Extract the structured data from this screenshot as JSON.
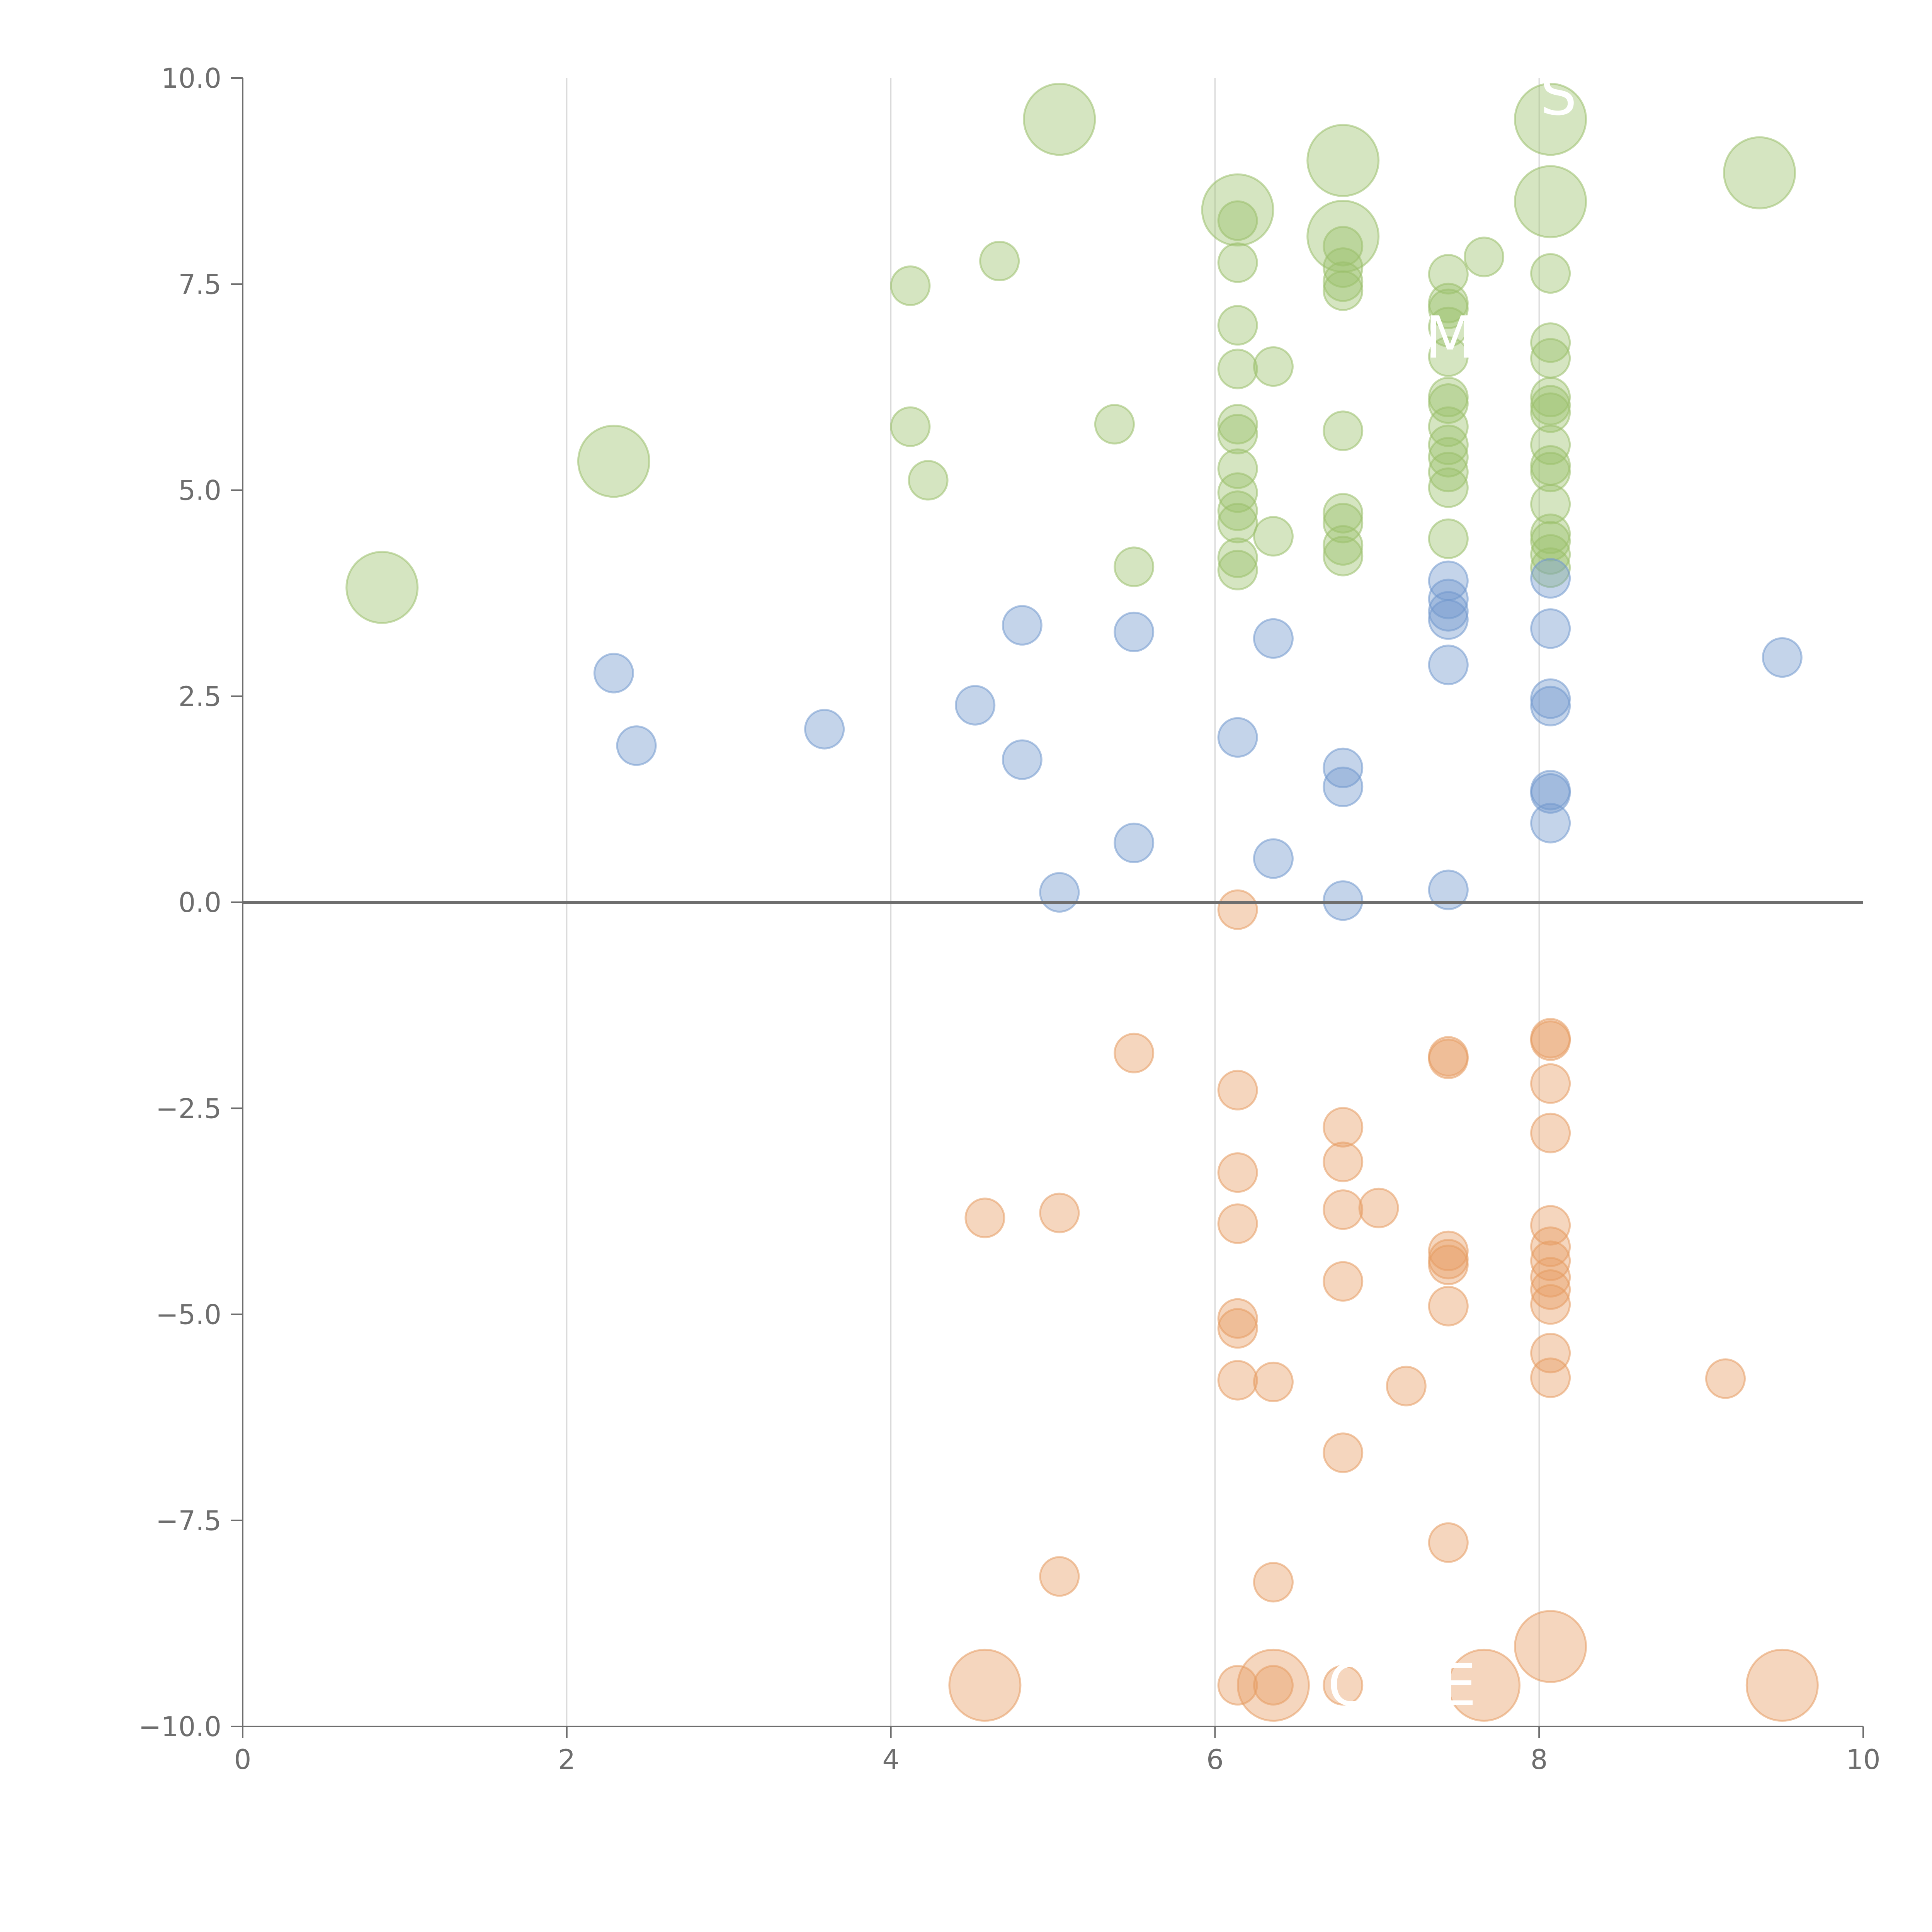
{
  "chart_data": {
    "type": "scatter",
    "title": "",
    "xlabel": "",
    "ylabel": "",
    "xlim": [
      0,
      10
    ],
    "ylim": [
      -10,
      10
    ],
    "x_ticks": [
      "0",
      "2",
      "4",
      "6",
      "8",
      "10"
    ],
    "y_ticks": [
      "10.0",
      "7.5",
      "5.0",
      "2.5",
      "0.0",
      "−2.5",
      "−5.0",
      "−7.5",
      "−10.0"
    ],
    "vertical_gridlines_at": [
      2,
      4,
      6,
      8
    ],
    "reference_line_y": 0,
    "legend": "none",
    "colors": {
      "green": "#9bc06b",
      "blue": "#7399ce",
      "orange": "#e69d63",
      "axis": "#6e6e6e",
      "grid": "#d6d6d6"
    },
    "overlay_labels": [
      {
        "text": "S",
        "x": 8.12,
        "y": 9.75
      },
      {
        "text": "M",
        "x": 7.45,
        "y": 6.8
      },
      {
        "text": "C",
        "x": 6.82,
        "y": -9.55
      },
      {
        "text": "E",
        "x": 7.5,
        "y": -9.55
      }
    ],
    "series": [
      {
        "name": "green",
        "color": "#9bc06b",
        "points": [
          {
            "x": 0.86,
            "y": 3.82,
            "s": "large"
          },
          {
            "x": 2.29,
            "y": 5.35,
            "s": "large"
          },
          {
            "x": 5.04,
            "y": 9.5,
            "s": "large"
          },
          {
            "x": 6.14,
            "y": 8.4,
            "s": "large"
          },
          {
            "x": 6.79,
            "y": 9.0,
            "s": "large"
          },
          {
            "x": 6.79,
            "y": 8.08,
            "s": "large"
          },
          {
            "x": 8.07,
            "y": 9.5,
            "s": "large"
          },
          {
            "x": 8.07,
            "y": 8.5,
            "s": "large"
          },
          {
            "x": 9.36,
            "y": 8.85,
            "s": "large"
          },
          {
            "x": 4.12,
            "y": 7.48,
            "s": "small"
          },
          {
            "x": 4.67,
            "y": 7.78,
            "s": "small"
          },
          {
            "x": 4.12,
            "y": 5.77,
            "s": "small"
          },
          {
            "x": 4.23,
            "y": 5.12,
            "s": "small"
          },
          {
            "x": 5.38,
            "y": 5.8,
            "s": "small"
          },
          {
            "x": 5.5,
            "y": 4.07,
            "s": "small"
          },
          {
            "x": 6.14,
            "y": 8.27,
            "s": "small"
          },
          {
            "x": 6.14,
            "y": 7.76,
            "s": "small"
          },
          {
            "x": 6.14,
            "y": 7.0,
            "s": "small"
          },
          {
            "x": 6.14,
            "y": 6.47,
            "s": "small"
          },
          {
            "x": 6.36,
            "y": 6.5,
            "s": "small"
          },
          {
            "x": 6.14,
            "y": 5.8,
            "s": "small"
          },
          {
            "x": 6.14,
            "y": 5.68,
            "s": "small"
          },
          {
            "x": 6.14,
            "y": 5.26,
            "s": "small"
          },
          {
            "x": 6.14,
            "y": 4.97,
            "s": "small"
          },
          {
            "x": 6.14,
            "y": 4.75,
            "s": "small"
          },
          {
            "x": 6.14,
            "y": 4.6,
            "s": "small"
          },
          {
            "x": 6.14,
            "y": 4.18,
            "s": "small"
          },
          {
            "x": 6.14,
            "y": 4.03,
            "s": "small"
          },
          {
            "x": 6.36,
            "y": 4.44,
            "s": "small"
          },
          {
            "x": 6.79,
            "y": 7.96,
            "s": "small"
          },
          {
            "x": 6.79,
            "y": 7.7,
            "s": "small"
          },
          {
            "x": 6.79,
            "y": 7.53,
            "s": "small"
          },
          {
            "x": 6.79,
            "y": 7.42,
            "s": "small"
          },
          {
            "x": 6.79,
            "y": 5.72,
            "s": "small"
          },
          {
            "x": 6.79,
            "y": 4.72,
            "s": "small"
          },
          {
            "x": 6.79,
            "y": 4.6,
            "s": "small"
          },
          {
            "x": 6.79,
            "y": 4.33,
            "s": "small"
          },
          {
            "x": 6.79,
            "y": 4.2,
            "s": "small"
          },
          {
            "x": 7.44,
            "y": 7.62,
            "s": "small"
          },
          {
            "x": 7.44,
            "y": 7.27,
            "s": "small"
          },
          {
            "x": 7.44,
            "y": 7.2,
            "s": "small"
          },
          {
            "x": 7.44,
            "y": 6.98,
            "s": "small"
          },
          {
            "x": 7.44,
            "y": 6.62,
            "s": "small"
          },
          {
            "x": 7.44,
            "y": 6.13,
            "s": "small"
          },
          {
            "x": 7.44,
            "y": 6.05,
            "s": "small"
          },
          {
            "x": 7.44,
            "y": 5.77,
            "s": "small"
          },
          {
            "x": 7.44,
            "y": 5.55,
            "s": "small"
          },
          {
            "x": 7.44,
            "y": 5.4,
            "s": "small"
          },
          {
            "x": 7.44,
            "y": 5.22,
            "s": "small"
          },
          {
            "x": 7.44,
            "y": 5.03,
            "s": "small"
          },
          {
            "x": 7.44,
            "y": 4.41,
            "s": "small"
          },
          {
            "x": 7.66,
            "y": 7.83,
            "s": "small"
          },
          {
            "x": 8.07,
            "y": 7.63,
            "s": "small"
          },
          {
            "x": 8.07,
            "y": 6.79,
            "s": "small"
          },
          {
            "x": 8.07,
            "y": 6.6,
            "s": "small"
          },
          {
            "x": 8.07,
            "y": 6.13,
            "s": "small"
          },
          {
            "x": 8.07,
            "y": 6.03,
            "s": "small"
          },
          {
            "x": 8.07,
            "y": 5.94,
            "s": "small"
          },
          {
            "x": 8.07,
            "y": 5.55,
            "s": "small"
          },
          {
            "x": 8.07,
            "y": 5.3,
            "s": "small"
          },
          {
            "x": 8.07,
            "y": 5.22,
            "s": "small"
          },
          {
            "x": 8.07,
            "y": 4.83,
            "s": "small"
          },
          {
            "x": 8.07,
            "y": 4.47,
            "s": "small"
          },
          {
            "x": 8.07,
            "y": 4.38,
            "s": "small"
          },
          {
            "x": 8.07,
            "y": 4.22,
            "s": "small"
          },
          {
            "x": 8.07,
            "y": 4.06,
            "s": "small"
          }
        ]
      },
      {
        "name": "blue",
        "color": "#7399ce",
        "points": [
          {
            "x": 2.29,
            "y": 2.78,
            "s": "small"
          },
          {
            "x": 2.43,
            "y": 1.9,
            "s": "small"
          },
          {
            "x": 3.59,
            "y": 2.1,
            "s": "small"
          },
          {
            "x": 4.52,
            "y": 2.39,
            "s": "small"
          },
          {
            "x": 4.81,
            "y": 3.36,
            "s": "small"
          },
          {
            "x": 4.81,
            "y": 1.73,
            "s": "small"
          },
          {
            "x": 5.04,
            "y": 0.12,
            "s": "small"
          },
          {
            "x": 5.5,
            "y": 3.28,
            "s": "small"
          },
          {
            "x": 5.5,
            "y": 0.72,
            "s": "small"
          },
          {
            "x": 6.14,
            "y": 2.0,
            "s": "small"
          },
          {
            "x": 6.36,
            "y": 3.2,
            "s": "small"
          },
          {
            "x": 6.36,
            "y": 0.53,
            "s": "small"
          },
          {
            "x": 6.79,
            "y": 1.63,
            "s": "small"
          },
          {
            "x": 6.79,
            "y": 1.4,
            "s": "small"
          },
          {
            "x": 6.79,
            "y": 0.02,
            "s": "small"
          },
          {
            "x": 7.44,
            "y": 3.9,
            "s": "small"
          },
          {
            "x": 7.44,
            "y": 3.68,
            "s": "small"
          },
          {
            "x": 7.44,
            "y": 3.53,
            "s": "small"
          },
          {
            "x": 7.44,
            "y": 3.43,
            "s": "small"
          },
          {
            "x": 7.44,
            "y": 2.88,
            "s": "small"
          },
          {
            "x": 7.44,
            "y": 0.15,
            "s": "small"
          },
          {
            "x": 8.07,
            "y": 3.93,
            "s": "small"
          },
          {
            "x": 8.07,
            "y": 3.32,
            "s": "small"
          },
          {
            "x": 8.07,
            "y": 2.47,
            "s": "small"
          },
          {
            "x": 8.07,
            "y": 2.38,
            "s": "small"
          },
          {
            "x": 8.07,
            "y": 1.36,
            "s": "small"
          },
          {
            "x": 8.07,
            "y": 1.32,
            "s": "small"
          },
          {
            "x": 8.07,
            "y": 0.96,
            "s": "small"
          },
          {
            "x": 9.5,
            "y": 2.97,
            "s": "small"
          }
        ]
      },
      {
        "name": "orange",
        "color": "#e69d63",
        "points": [
          {
            "x": 4.58,
            "y": -9.5,
            "s": "large"
          },
          {
            "x": 6.36,
            "y": -9.5,
            "s": "large"
          },
          {
            "x": 7.66,
            "y": -9.5,
            "s": "large"
          },
          {
            "x": 8.07,
            "y": -9.03,
            "s": "large"
          },
          {
            "x": 9.5,
            "y": -9.5,
            "s": "large"
          },
          {
            "x": 4.58,
            "y": -3.83,
            "s": "small"
          },
          {
            "x": 5.04,
            "y": -3.77,
            "s": "small"
          },
          {
            "x": 5.04,
            "y": -8.18,
            "s": "small"
          },
          {
            "x": 5.5,
            "y": -1.83,
            "s": "small"
          },
          {
            "x": 6.14,
            "y": -0.09,
            "s": "small"
          },
          {
            "x": 6.14,
            "y": -2.28,
            "s": "small"
          },
          {
            "x": 6.14,
            "y": -3.28,
            "s": "small"
          },
          {
            "x": 6.14,
            "y": -3.9,
            "s": "small"
          },
          {
            "x": 6.14,
            "y": -5.05,
            "s": "small"
          },
          {
            "x": 6.14,
            "y": -5.17,
            "s": "small"
          },
          {
            "x": 6.14,
            "y": -5.8,
            "s": "small"
          },
          {
            "x": 6.36,
            "y": -5.82,
            "s": "small"
          },
          {
            "x": 6.14,
            "y": -9.5,
            "s": "small"
          },
          {
            "x": 6.36,
            "y": -9.5,
            "s": "small"
          },
          {
            "x": 6.36,
            "y": -8.25,
            "s": "small"
          },
          {
            "x": 6.79,
            "y": -2.73,
            "s": "small"
          },
          {
            "x": 6.79,
            "y": -3.15,
            "s": "small"
          },
          {
            "x": 6.79,
            "y": -3.73,
            "s": "small"
          },
          {
            "x": 7.01,
            "y": -3.71,
            "s": "small"
          },
          {
            "x": 6.79,
            "y": -4.6,
            "s": "small"
          },
          {
            "x": 6.79,
            "y": -6.68,
            "s": "small"
          },
          {
            "x": 6.79,
            "y": -9.5,
            "s": "small"
          },
          {
            "x": 7.18,
            "y": -5.87,
            "s": "small"
          },
          {
            "x": 7.44,
            "y": -1.87,
            "s": "small"
          },
          {
            "x": 7.44,
            "y": -1.9,
            "s": "small"
          },
          {
            "x": 7.44,
            "y": -4.23,
            "s": "small"
          },
          {
            "x": 7.44,
            "y": -4.33,
            "s": "small"
          },
          {
            "x": 7.44,
            "y": -4.4,
            "s": "small"
          },
          {
            "x": 7.44,
            "y": -4.9,
            "s": "small"
          },
          {
            "x": 7.44,
            "y": -7.77,
            "s": "small"
          },
          {
            "x": 8.07,
            "y": -1.65,
            "s": "small"
          },
          {
            "x": 8.07,
            "y": -1.68,
            "s": "small"
          },
          {
            "x": 8.07,
            "y": -2.2,
            "s": "small"
          },
          {
            "x": 8.07,
            "y": -2.8,
            "s": "small"
          },
          {
            "x": 8.07,
            "y": -3.92,
            "s": "small"
          },
          {
            "x": 8.07,
            "y": -4.18,
            "s": "small"
          },
          {
            "x": 8.07,
            "y": -4.35,
            "s": "small"
          },
          {
            "x": 8.07,
            "y": -4.55,
            "s": "small"
          },
          {
            "x": 8.07,
            "y": -4.7,
            "s": "small"
          },
          {
            "x": 8.07,
            "y": -4.88,
            "s": "small"
          },
          {
            "x": 8.07,
            "y": -5.47,
            "s": "small"
          },
          {
            "x": 8.07,
            "y": -5.77,
            "s": "small"
          },
          {
            "x": 9.15,
            "y": -5.78,
            "s": "small"
          }
        ]
      }
    ]
  }
}
